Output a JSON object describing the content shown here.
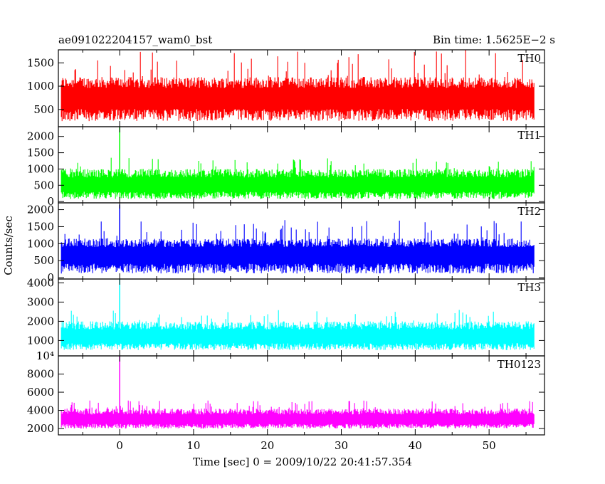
{
  "header": {
    "title": "ae091022204157_wam0_bst",
    "bin_time": "Bin time: 1.5625E−2 s"
  },
  "chart_data": {
    "type": "line",
    "title": "ae091022204157_wam0_bst",
    "subtitle": "Bin time: 1.5625E−2 s",
    "xlabel": "Time [sec] 0 = 2009/10/22 20:41:57.354",
    "ylabel": "Counts/sec",
    "xlim": [
      -8.3,
      57.5
    ],
    "x_data_range": [
      -7.9,
      56.1
    ],
    "x_ticks": [
      0,
      10,
      20,
      30,
      40,
      50
    ],
    "x_tick_labels": [
      "0",
      "10",
      "20",
      "30",
      "40",
      "50"
    ],
    "grid": false,
    "legend": "none",
    "panels": [
      {
        "name": "TH0",
        "color": "#ff0000",
        "ylim": [
          130,
          1780
        ],
        "y_ticks": [
          500,
          1000,
          1500
        ],
        "y_tick_labels": [
          "500",
          "1000",
          "1500"
        ],
        "noise": {
          "center": 720,
          "low": 250,
          "high": 1200,
          "spike_max": 1780
        },
        "peak": null
      },
      {
        "name": "TH1",
        "color": "#00ff00",
        "ylim": [
          -40,
          2300
        ],
        "y_ticks": [
          0,
          500,
          1000,
          1500,
          2000
        ],
        "y_tick_labels": [
          "0",
          "500",
          "1000",
          "1500",
          "2000"
        ],
        "noise": {
          "center": 480,
          "low": 80,
          "high": 1000,
          "spike_max": 1350
        },
        "peak": {
          "x": 0,
          "value": 2300
        }
      },
      {
        "name": "TH2",
        "color": "#0000ff",
        "ylim": [
          -40,
          2200
        ],
        "y_ticks": [
          0,
          500,
          1000,
          1500,
          2000
        ],
        "y_tick_labels": [
          "0",
          "500",
          "1000",
          "1500",
          "2000"
        ],
        "noise": {
          "center": 650,
          "low": 120,
          "high": 1150,
          "spike_max": 1700
        },
        "peak": {
          "x": 0,
          "value": 2150
        }
      },
      {
        "name": "TH3",
        "color": "#00ffff",
        "ylim": [
          200,
          4200
        ],
        "y_ticks": [
          1000,
          2000,
          3000,
          4000
        ],
        "y_tick_labels": [
          "1000",
          "2000",
          "3000",
          "4000"
        ],
        "noise": {
          "center": 1150,
          "low": 500,
          "high": 2000,
          "spike_max": 2600
        },
        "peak": {
          "x": 0,
          "value": 4200
        }
      },
      {
        "name": "TH0123",
        "color": "#ff00ff",
        "ylim": [
          1300,
          10000
        ],
        "y_ticks": [
          2000,
          4000,
          6000,
          8000,
          10000
        ],
        "y_tick_labels": [
          "2000",
          "4000",
          "6000",
          "8000",
          "10⁴"
        ],
        "noise": {
          "center": 2900,
          "low": 2000,
          "high": 4200,
          "spike_max": 5100
        },
        "peak": {
          "x": 0,
          "value": 10000
        }
      }
    ]
  }
}
